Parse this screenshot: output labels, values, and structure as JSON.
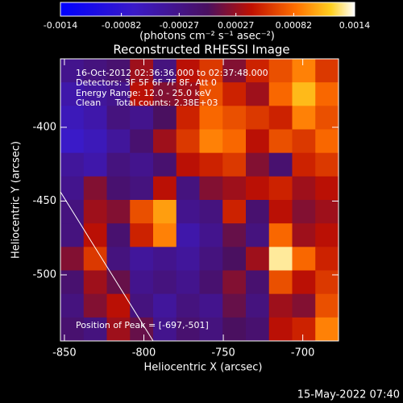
{
  "chart_data": {
    "type": "heatmap",
    "title": "Reconstructed RHESSI Image",
    "xlabel": "Heliocentric X (arcsec)",
    "ylabel": "Heliocentric Y (arcsec)",
    "colorbar_label": "(photons cm⁻² s⁻¹ asec⁻²)",
    "zlim": [
      -0.0014,
      0.0014
    ],
    "zticks": [
      -0.0014,
      -0.00082,
      -0.00027,
      0.00027,
      0.00082,
      0.0014
    ],
    "xlim": [
      -852.5,
      -677.5
    ],
    "xticks": [
      -850,
      -800,
      -750,
      -700
    ],
    "ylim": [
      -544.8,
      -353.6
    ],
    "yticks": [
      -400,
      -450,
      -500
    ],
    "annotations": [
      "16-Oct-2012 02:36:36.000 to 02:37:48.000",
      "Detectors: 3F 5F 6F 7F 8F, Att 0",
      "Energy Range: 12.0 - 25.0 keV",
      "Clean     Total counts: 2.38E+03"
    ],
    "peak_label": "Position of Peak = [-697,-501]",
    "timestamp": "15-May-2022 07:40",
    "z": [
      [
        -0.0003,
        -0.0002,
        -0.0001,
        0.0003,
        -0.0002,
        0.0004,
        0.0006,
        0.0002,
        0.0005,
        0.0007,
        0.0009,
        0.0006
      ],
      [
        -0.0005,
        -0.0004,
        -0.0003,
        0.0004,
        0.0002,
        0.0003,
        0.0007,
        0.0005,
        0.0003,
        0.0008,
        0.0011,
        0.0008
      ],
      [
        -0.0006,
        -0.0005,
        -0.0002,
        -0.0003,
        0.0,
        0.0005,
        0.0008,
        0.0007,
        0.0006,
        0.0005,
        0.0009,
        0.0007
      ],
      [
        -0.0007,
        -0.0006,
        -0.0004,
        -0.0001,
        0.0003,
        0.0006,
        0.0009,
        0.0008,
        0.0004,
        0.0007,
        0.0006,
        0.0008
      ],
      [
        -0.0004,
        -0.0005,
        -0.0002,
        -0.0003,
        -0.0001,
        0.0004,
        0.0005,
        0.0006,
        0.0002,
        -0.0001,
        0.0005,
        0.0006
      ],
      [
        -0.0003,
        0.0002,
        -0.0001,
        -0.0002,
        0.0004,
        -0.0002,
        0.0002,
        0.0003,
        0.0004,
        0.0005,
        0.0003,
        0.0004
      ],
      [
        -0.0002,
        0.0003,
        0.0002,
        0.0007,
        0.001,
        -0.0003,
        -0.0002,
        0.0005,
        -0.0001,
        0.0004,
        0.0002,
        0.0003
      ],
      [
        -0.0002,
        0.0004,
        -0.0001,
        0.0005,
        0.0009,
        -0.0005,
        -0.0003,
        0.0001,
        -0.0002,
        0.0008,
        0.0003,
        0.0004
      ],
      [
        0.0002,
        0.0006,
        -0.0002,
        -0.0004,
        -0.0003,
        -0.0004,
        -0.0002,
        0.0,
        0.0003,
        0.0013,
        0.0008,
        0.0005
      ],
      [
        -0.0001,
        0.0003,
        0.0001,
        -0.0003,
        -0.0002,
        -0.0003,
        -0.0001,
        0.0002,
        -0.0001,
        0.0007,
        0.0004,
        0.0006
      ],
      [
        -0.0002,
        0.0002,
        0.0004,
        -0.0002,
        -0.0004,
        -0.0002,
        -0.0003,
        0.0001,
        -0.0002,
        0.0003,
        0.0002,
        0.0007
      ],
      [
        -0.0001,
        -0.0002,
        0.0003,
        0.0001,
        -0.0003,
        -0.0001,
        -0.0002,
        0.0,
        -0.0001,
        0.0004,
        0.0005,
        0.0009
      ]
    ]
  }
}
